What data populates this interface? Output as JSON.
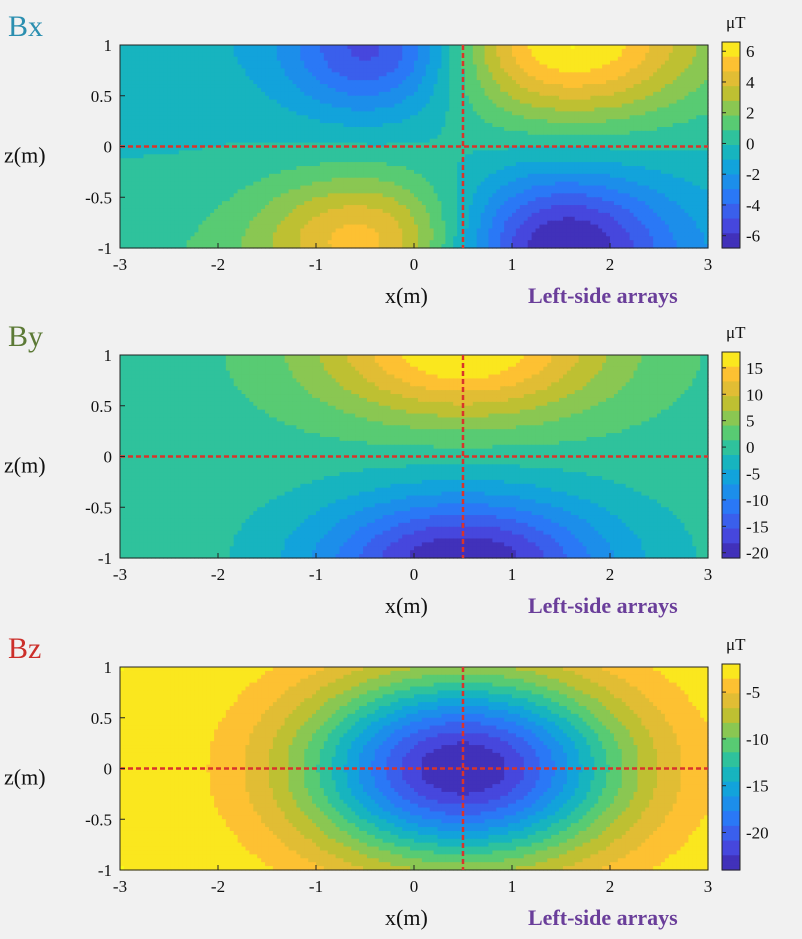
{
  "chart_data": [
    {
      "type": "heatmap",
      "title": "Bx",
      "title_color": "#2b8fb0",
      "xlabel": "x(m)",
      "ylabel": "z(m)",
      "caption": "Left-side  arrays",
      "colorbar_unit": "μT",
      "xlim": [
        -3,
        3
      ],
      "ylim": [
        -1,
        1
      ],
      "x_ticks": [
        "-3",
        "-2",
        "-1",
        "0",
        "1",
        "2",
        "3"
      ],
      "y_ticks": [
        "1",
        "0.5",
        "0",
        "-0.5",
        "-1"
      ],
      "colorbar_range": [
        -6.8,
        6.6
      ],
      "colorbar_ticks": [
        "6",
        "4",
        "2",
        "0",
        "-2",
        "-4",
        "-6"
      ],
      "colorbar_tick_values": [
        6,
        4,
        2,
        0,
        -2,
        -4,
        -6
      ],
      "dashed_lines": {
        "x": 0.5,
        "z": 0,
        "color": "#d9342b"
      },
      "field": {
        "component": "x",
        "x0": 0.5,
        "amplitude": 6.6,
        "min_value": -6.8
      }
    },
    {
      "type": "heatmap",
      "title": "By",
      "title_color": "#5c7a36",
      "xlabel": "x(m)",
      "ylabel": "z(m)",
      "caption": "Left-side  arrays",
      "colorbar_unit": "μT",
      "xlim": [
        -3,
        3
      ],
      "ylim": [
        -1,
        1
      ],
      "x_ticks": [
        "-3",
        "-2",
        "-1",
        "0",
        "1",
        "2",
        "3"
      ],
      "y_ticks": [
        "1",
        "0.5",
        "0",
        "-0.5",
        "-1"
      ],
      "colorbar_range": [
        -21,
        18
      ],
      "colorbar_ticks": [
        "15",
        "10",
        "5",
        "0",
        "-5",
        "-10",
        "-15",
        "-20"
      ],
      "colorbar_tick_values": [
        15,
        10,
        5,
        0,
        -5,
        -10,
        -15,
        -20
      ],
      "dashed_lines": {
        "x": 0.5,
        "z": 0,
        "color": "#d9342b"
      },
      "field": {
        "component": "y",
        "x0": 0.5,
        "amplitude": 17.5,
        "min_value": -21
      }
    },
    {
      "type": "heatmap",
      "title": "Bz",
      "title_color": "#cc2f2a",
      "xlabel": "x(m)",
      "ylabel": "z(m)",
      "caption": "Left-side  arrays",
      "colorbar_unit": "μT",
      "xlim": [
        -3,
        3
      ],
      "ylim": [
        -1,
        1
      ],
      "x_ticks": [
        "-3",
        "-2",
        "-1",
        "0",
        "1",
        "2",
        "3"
      ],
      "y_ticks": [
        "1",
        "0.5",
        "0",
        "-0.5",
        "-1"
      ],
      "colorbar_range": [
        -24,
        -2
      ],
      "colorbar_ticks": [
        "-5",
        "-10",
        "-15",
        "-20"
      ],
      "colorbar_tick_values": [
        -5,
        -10,
        -15,
        -20
      ],
      "dashed_lines": {
        "x": 0.5,
        "z": 0,
        "color": "#d9342b"
      },
      "field": {
        "component": "z",
        "x0": 0.5,
        "min_value": -24,
        "max_value": -2
      }
    }
  ]
}
